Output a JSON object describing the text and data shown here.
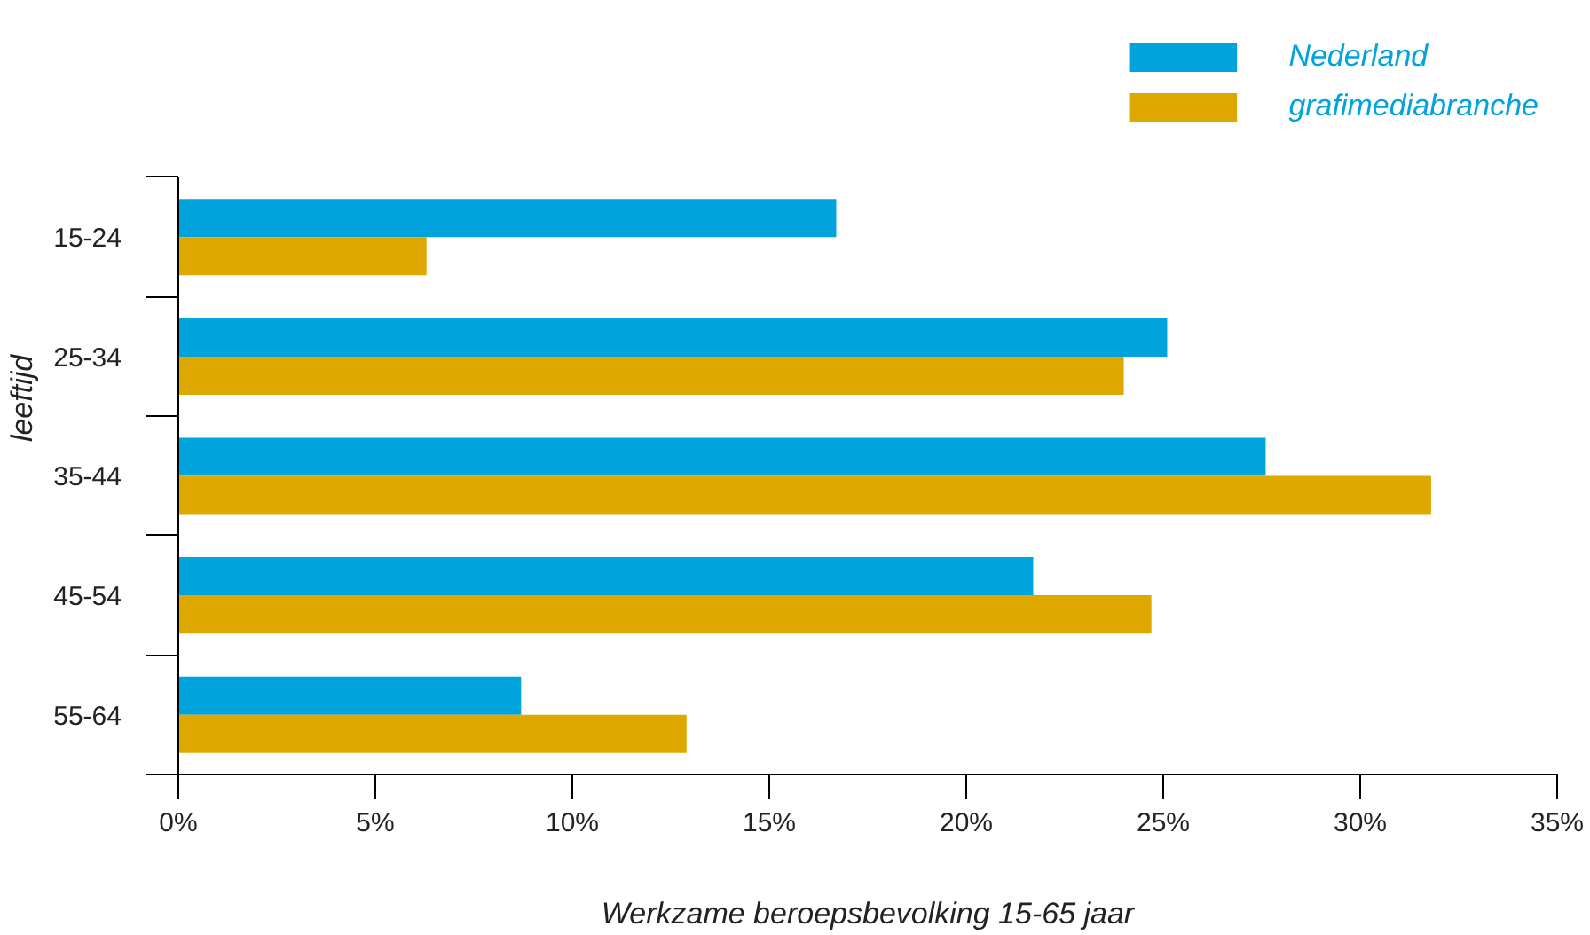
{
  "chart_data": {
    "type": "bar",
    "orientation": "horizontal",
    "categories": [
      "15-24",
      "25-34",
      "35-44",
      "45-54",
      "55-64"
    ],
    "series": [
      {
        "name": "Nederland",
        "color": "#00a3dc",
        "values": [
          16.7,
          25.1,
          27.6,
          21.7,
          8.7
        ]
      },
      {
        "name": "grafimediabranche",
        "color": "#dea800",
        "values": [
          6.3,
          24.0,
          31.8,
          24.7,
          12.9
        ]
      }
    ],
    "xlabel": "Werkzame beroepsbevolking 15-65 jaar",
    "ylabel": "leeftijd",
    "xlim": [
      0,
      35
    ],
    "xticks": [
      {
        "value": 0,
        "label": "0%"
      },
      {
        "value": 5,
        "label": "5%"
      },
      {
        "value": 10,
        "label": "10%"
      },
      {
        "value": 15,
        "label": "15%"
      },
      {
        "value": 20,
        "label": "20%"
      },
      {
        "value": 25,
        "label": "25%"
      },
      {
        "value": 30,
        "label": "30%"
      },
      {
        "value": 35,
        "label": "35%"
      }
    ],
    "grid": false,
    "legend": "top right"
  }
}
